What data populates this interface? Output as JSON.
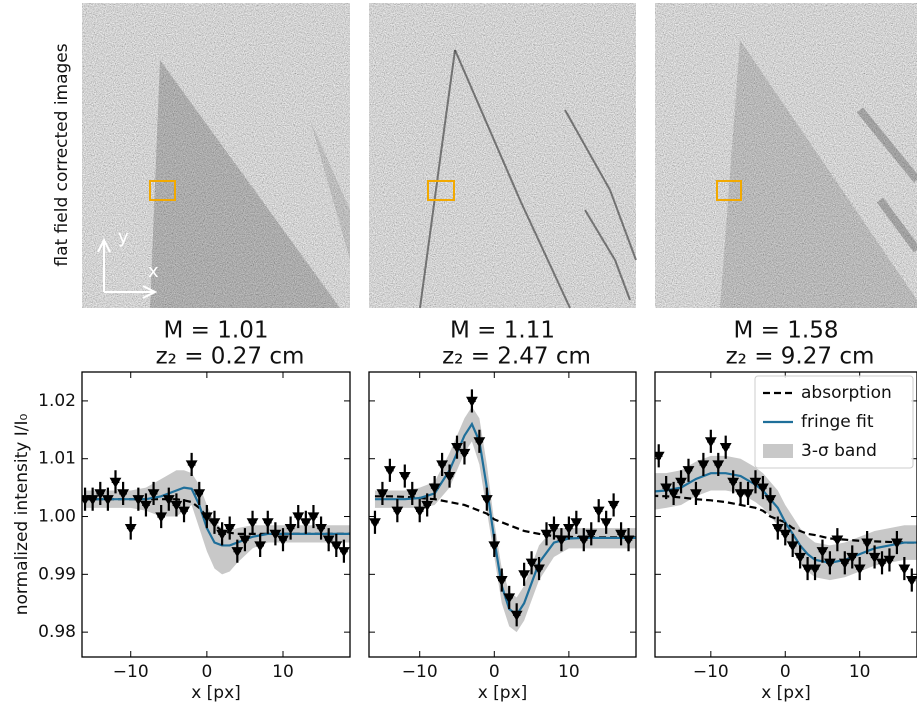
{
  "figure": {
    "ylabel": "flat field corrected images",
    "axis_x": "x",
    "axis_y": "y"
  },
  "chart_data": [
    {
      "type": "line",
      "title": "M = 1.01",
      "subtitle": "z₂ = 0.27 cm",
      "xlabel": "x [px]",
      "ylabel": "normalized intensity I/I₀",
      "xlim": [
        -16.4,
        18.8
      ],
      "ylim": [
        0.9757,
        1.025
      ],
      "xticks": [
        {
          "value": -10,
          "label": "−10"
        },
        0,
        10
      ],
      "yticks": [
        0.98,
        0.99,
        {
          "value": 1,
          "label": "1.00"
        },
        1.01,
        1.02
      ],
      "legend": false,
      "x": [
        -16,
        -14,
        -12,
        -10,
        -8,
        -6,
        -4,
        -3,
        -2,
        -1,
        0,
        1,
        2,
        3,
        4,
        6,
        8,
        10,
        12,
        14,
        16,
        19
      ],
      "series": [
        {
          "name": "absorption",
          "color": "#000000",
          "dashed": true,
          "values": [
            1.003,
            1.003,
            1.003,
            1.003,
            1.003,
            1.003,
            1.003,
            1.0028,
            1.0025,
            1.0015,
            1.0,
            0.9985,
            0.9975,
            0.9972,
            0.997,
            0.997,
            0.997,
            0.997,
            0.997,
            0.997,
            0.997,
            0.997
          ]
        },
        {
          "name": "fringe fit",
          "color": "#1f6f9a",
          "values": [
            1.003,
            1.003,
            1.003,
            1.003,
            1.003,
            1.0035,
            1.0045,
            1.005,
            1.0048,
            1.002,
            0.998,
            0.9955,
            0.995,
            0.995,
            0.9955,
            0.9965,
            0.997,
            0.997,
            0.997,
            0.997,
            0.997,
            0.997
          ]
        },
        {
          "name": "3-σ band",
          "color": "#c8c8c8",
          "upper": [
            1.0045,
            1.0045,
            1.0045,
            1.0045,
            1.005,
            1.0065,
            1.008,
            1.008,
            1.0075,
            1.0055,
            1.002,
            0.999,
            0.998,
            0.9975,
            0.998,
            0.9985,
            0.9985,
            0.9985,
            0.9985,
            0.9985,
            0.9985,
            0.9985
          ],
          "lower": [
            1.0015,
            1.0015,
            1.0015,
            1.0015,
            1.001,
            1.0,
            1.0,
            1.001,
            1.002,
            0.998,
            0.994,
            0.991,
            0.99,
            0.9905,
            0.992,
            0.9945,
            0.9955,
            0.9955,
            0.9955,
            0.9955,
            0.9955,
            0.9955
          ]
        }
      ],
      "points": {
        "color": "#000000",
        "xerr": 0.5,
        "yerr": 0.002,
        "x": [
          -16,
          -15,
          -14,
          -13,
          -12,
          -11,
          -10,
          -9,
          -8,
          -7,
          -6,
          -5,
          -4,
          -3,
          -2,
          -1,
          0,
          1,
          2,
          3,
          4,
          5,
          6,
          7,
          8,
          9,
          10,
          11,
          12,
          13,
          14,
          15,
          16,
          17,
          18
        ],
        "values": [
          1.003,
          1.003,
          1.004,
          1.003,
          1.006,
          1.004,
          0.998,
          1.003,
          1.002,
          1.004,
          1.0,
          1.003,
          1.002,
          1.001,
          1.009,
          1.004,
          1.0,
          0.999,
          0.997,
          0.998,
          0.994,
          0.996,
          0.999,
          0.995,
          0.999,
          0.997,
          0.996,
          0.998,
          1.0,
          0.999,
          1.0,
          0.998,
          0.996,
          0.995,
          0.994
        ]
      }
    },
    {
      "type": "line",
      "title": "M = 1.11",
      "subtitle": "z₂ = 2.47 cm",
      "xlabel": "x [px]",
      "xlim": [
        -16.8,
        19.0
      ],
      "ylim": [
        0.9757,
        1.025
      ],
      "xticks": [
        {
          "value": -10,
          "label": "−10"
        },
        0,
        10
      ],
      "yticks": [
        0.98,
        0.99,
        1,
        1.01,
        1.02
      ],
      "ytick_labels": false,
      "legend": false,
      "x": [
        -16,
        -14,
        -12,
        -10,
        -8,
        -6,
        -4,
        -3,
        -2,
        -1,
        0,
        1,
        2,
        3,
        4,
        6,
        8,
        10,
        12,
        14,
        16,
        19
      ],
      "series": [
        {
          "name": "absorption",
          "color": "#000000",
          "dashed": true,
          "values": [
            1.0035,
            1.0035,
            1.0034,
            1.0032,
            1.003,
            1.0025,
            1.002,
            1.0015,
            1.001,
            1.0005,
            0.9995,
            0.999,
            0.9985,
            0.998,
            0.9975,
            0.997,
            0.9966,
            0.9965,
            0.9964,
            0.9964,
            0.9964,
            0.9964
          ]
        },
        {
          "name": "fringe fit",
          "color": "#1f6f9a",
          "values": [
            1.003,
            1.003,
            1.003,
            1.0032,
            1.004,
            1.008,
            1.014,
            1.016,
            1.013,
            1.005,
            0.996,
            0.988,
            0.984,
            0.983,
            0.985,
            0.992,
            0.9955,
            0.9962,
            0.9963,
            0.9963,
            0.9963,
            0.9963
          ]
        },
        {
          "name": "3-σ band",
          "color": "#c8c8c8",
          "upper": [
            1.0045,
            1.0045,
            1.0045,
            1.005,
            1.006,
            1.011,
            1.017,
            1.019,
            1.017,
            1.009,
            0.999,
            0.991,
            0.987,
            0.986,
            0.988,
            0.995,
            0.998,
            0.998,
            0.998,
            0.998,
            0.998,
            0.998
          ],
          "lower": [
            1.0015,
            1.0015,
            1.0015,
            1.0015,
            1.002,
            1.005,
            1.011,
            1.013,
            1.009,
            1.001,
            0.993,
            0.985,
            0.981,
            0.98,
            0.982,
            0.989,
            0.993,
            0.9945,
            0.9945,
            0.9945,
            0.9945,
            0.9945
          ]
        }
      ],
      "points": {
        "color": "#000000",
        "xerr": 0.5,
        "yerr": 0.002,
        "x": [
          -16,
          -15,
          -14,
          -13,
          -12,
          -11,
          -10,
          -9,
          -8,
          -7,
          -6,
          -5,
          -4,
          -3,
          -2,
          -1,
          0,
          1,
          2,
          3,
          4,
          5,
          6,
          7,
          8,
          9,
          10,
          11,
          12,
          13,
          14,
          15,
          16,
          17,
          18
        ],
        "values": [
          0.999,
          1.004,
          1.008,
          1.001,
          1.007,
          1.004,
          1.001,
          1.002,
          1.005,
          1.009,
          1.007,
          1.012,
          1.011,
          1.02,
          1.013,
          1.003,
          0.995,
          0.989,
          0.986,
          0.983,
          0.99,
          0.992,
          0.991,
          0.997,
          0.998,
          0.996,
          0.998,
          0.999,
          0.996,
          0.997,
          1.001,
          0.999,
          1.002,
          0.997,
          0.996
        ]
      }
    },
    {
      "type": "line",
      "title": "M = 1.58",
      "subtitle": "z₂ = 9.27 cm",
      "xlabel": "x [px]",
      "xlim": [
        -17.5,
        17.7
      ],
      "ylim": [
        0.9757,
        1.025
      ],
      "xticks": [
        {
          "value": -10,
          "label": "−10"
        },
        0,
        10
      ],
      "yticks": [
        0.98,
        0.99,
        1,
        1.01,
        1.02
      ],
      "ytick_labels": false,
      "legend": "upper right",
      "x": [
        -18,
        -16,
        -14,
        -12,
        -10,
        -8,
        -6,
        -4,
        -3,
        -2,
        -1,
        0,
        1,
        2,
        3,
        4,
        6,
        8,
        10,
        12,
        14,
        16,
        18
      ],
      "series": [
        {
          "name": "absorption",
          "color": "#000000",
          "dashed": true,
          "values": [
            1.0036,
            1.0035,
            1.0033,
            1.003,
            1.0028,
            1.0025,
            1.002,
            1.0015,
            1.001,
            1.0,
            0.9995,
            0.999,
            0.998,
            0.9975,
            0.997,
            0.9968,
            0.9962,
            0.996,
            0.9958,
            0.9957,
            0.9956,
            0.9955,
            0.9955
          ]
        },
        {
          "name": "fringe fit",
          "color": "#1f6f9a",
          "values": [
            1.0043,
            1.0045,
            1.005,
            1.0065,
            1.0075,
            1.0075,
            1.007,
            1.0055,
            1.0045,
            1.003,
            1.0015,
            0.999,
            0.997,
            0.995,
            0.9935,
            0.9925,
            0.992,
            0.9925,
            0.9935,
            0.9945,
            0.995,
            0.9955,
            0.9955
          ]
        },
        {
          "name": "3-σ band",
          "color": "#c8c8c8",
          "upper": [
            1.0075,
            1.0075,
            1.008,
            1.0095,
            1.0105,
            1.0105,
            1.01,
            1.0085,
            1.0075,
            1.006,
            1.0045,
            1.002,
            1.0,
            0.998,
            0.9965,
            0.9955,
            0.995,
            0.9955,
            0.9965,
            0.9975,
            0.998,
            0.9985,
            0.9985
          ],
          "lower": [
            1.0011,
            1.0015,
            1.002,
            1.0035,
            1.0045,
            1.0045,
            1.004,
            1.0025,
            1.0015,
            1.0,
            0.9985,
            0.996,
            0.994,
            0.992,
            0.9905,
            0.9895,
            0.989,
            0.9895,
            0.9905,
            0.9915,
            0.992,
            0.9925,
            0.9925
          ]
        }
      ],
      "points": {
        "color": "#000000",
        "xerr": 0.5,
        "yerr": 0.002,
        "x": [
          -17,
          -16,
          -15,
          -14,
          -13,
          -12,
          -11,
          -10,
          -9,
          -8,
          -7,
          -6,
          -5,
          -4,
          -3,
          -2,
          -1,
          0,
          1,
          2,
          3,
          4,
          5,
          6,
          7,
          8,
          9,
          10,
          11,
          12,
          13,
          14,
          15,
          16,
          17
        ],
        "values": [
          1.0105,
          1.005,
          1.004,
          1.006,
          1.008,
          1.004,
          1.009,
          1.013,
          1.009,
          1.012,
          1.006,
          1.004,
          1.004,
          1.006,
          1.005,
          1.003,
          0.998,
          0.997,
          0.995,
          0.993,
          0.991,
          0.991,
          0.994,
          0.992,
          0.996,
          0.992,
          0.993,
          0.991,
          0.9955,
          0.993,
          0.992,
          0.9925,
          0.9955,
          0.991,
          0.989
        ]
      }
    }
  ]
}
